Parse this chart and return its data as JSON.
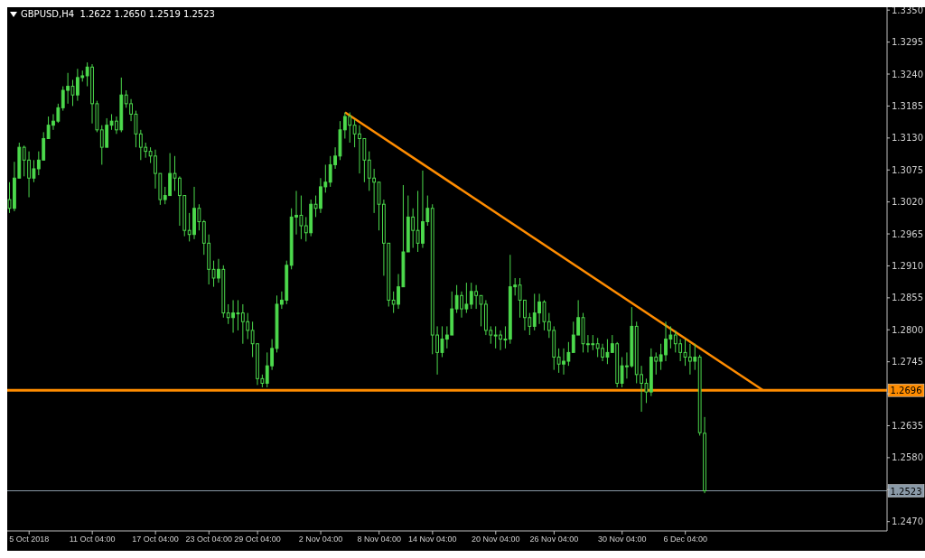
{
  "chart_data": {
    "type": "candlestick",
    "title": "GBPUSD,H4  1.2622 1.2650 1.2519 1.2523",
    "color": "#4cd94c",
    "categories": [
      null,
      null,
      null,
      null,
      "5 Oct 2018",
      null,
      null,
      null,
      null,
      null,
      null,
      null,
      null,
      null,
      null,
      null,
      null,
      "11 Oct 04:00",
      null,
      null,
      null,
      null,
      null,
      null,
      null,
      null,
      null,
      null,
      null,
      null,
      "17 Oct 04:00",
      null,
      null,
      null,
      null,
      null,
      null,
      null,
      null,
      null,
      null,
      "23 Oct 04:00",
      null,
      null,
      null,
      null,
      null,
      null,
      null,
      null,
      null,
      "29 Oct 04:00",
      null,
      null,
      null,
      null,
      null,
      null,
      null,
      null,
      null,
      null,
      null,
      null,
      "2 Nov 04:00",
      null,
      null,
      null,
      null,
      null,
      null,
      null,
      null,
      null,
      null,
      null,
      "8 Nov 04:00",
      null,
      null,
      null,
      null,
      null,
      null,
      null,
      null,
      null,
      null,
      "14 Nov 04:00",
      null,
      null,
      null,
      null,
      null,
      null,
      null,
      null,
      null,
      null,
      null,
      null,
      "20 Nov 04:00",
      null,
      null,
      null,
      null,
      null,
      null,
      null,
      null,
      null,
      null,
      null,
      "26 Nov 04:00",
      null,
      null,
      null,
      null,
      null,
      null,
      null,
      null,
      null,
      null,
      null,
      null,
      null,
      "30 Nov 04:00",
      null,
      null,
      null,
      null,
      null,
      null,
      null,
      null,
      null,
      null,
      null,
      null,
      "6 Dec 04:00",
      null,
      null,
      null,
      null,
      null,
      null,
      null,
      null,
      null,
      null,
      null,
      null,
      null,
      null,
      null,
      null,
      null,
      null,
      null,
      null,
      null,
      null,
      null,
      null,
      null,
      null,
      null,
      null,
      null,
      null,
      null,
      null,
      null,
      null,
      null,
      null,
      null,
      null,
      null,
      null,
      null
    ],
    "ohlc": [
      [
        1.3024,
        1.3054,
        1.3001,
        1.3009
      ],
      [
        1.3009,
        1.3089,
        1.3004,
        1.3061
      ],
      [
        1.3061,
        1.3122,
        1.3061,
        1.3114
      ],
      [
        1.3114,
        1.3117,
        1.3064,
        1.3092
      ],
      [
        1.3092,
        1.3107,
        1.3028,
        1.3061
      ],
      [
        1.3061,
        1.3092,
        1.3054,
        1.3077
      ],
      [
        1.3077,
        1.3107,
        1.3066,
        1.3092
      ],
      [
        1.3092,
        1.314,
        1.3092,
        1.3129
      ],
      [
        1.3129,
        1.3167,
        1.3129,
        1.3152
      ],
      [
        1.3152,
        1.3171,
        1.3144,
        1.3159
      ],
      [
        1.3159,
        1.3189,
        1.3156,
        1.3182
      ],
      [
        1.3182,
        1.3219,
        1.3177,
        1.3212
      ],
      [
        1.3212,
        1.3242,
        1.3189,
        1.3219
      ],
      [
        1.3219,
        1.323,
        1.3185,
        1.3204
      ],
      [
        1.3204,
        1.3249,
        1.3194,
        1.3234
      ],
      [
        1.3234,
        1.3246,
        1.3227,
        1.3237
      ],
      [
        1.3237,
        1.326,
        1.3219,
        1.3252
      ],
      [
        1.3252,
        1.3257,
        1.3155,
        1.3189
      ],
      [
        1.3189,
        1.3194,
        1.314,
        1.3144
      ],
      [
        1.3144,
        1.3152,
        1.3084,
        1.3114
      ],
      [
        1.3114,
        1.3164,
        1.3114,
        1.3152
      ],
      [
        1.3152,
        1.3171,
        1.3144,
        1.3159
      ],
      [
        1.3159,
        1.3167,
        1.3137,
        1.3144
      ],
      [
        1.3144,
        1.3234,
        1.314,
        1.3204
      ],
      [
        1.3204,
        1.3212,
        1.3182,
        1.3189
      ],
      [
        1.3189,
        1.3197,
        1.3159,
        1.3171
      ],
      [
        1.3171,
        1.3177,
        1.3114,
        1.3137
      ],
      [
        1.3137,
        1.3144,
        1.3092,
        1.3114
      ],
      [
        1.3114,
        1.3122,
        1.3096,
        1.3107
      ],
      [
        1.3107,
        1.3114,
        1.3087,
        1.3099
      ],
      [
        1.3099,
        1.311,
        1.3043,
        1.3069
      ],
      [
        1.3069,
        1.3069,
        1.3015,
        1.3024
      ],
      [
        1.3024,
        1.3046,
        1.3016,
        1.3031
      ],
      [
        1.3031,
        1.3104,
        1.3031,
        1.3069
      ],
      [
        1.3069,
        1.3099,
        1.3039,
        1.3061
      ],
      [
        1.3061,
        1.3064,
        1.2979,
        1.3031
      ],
      [
        1.3031,
        1.3031,
        1.2961,
        1.2971
      ],
      [
        1.2971,
        1.3001,
        1.2952,
        1.2964
      ],
      [
        1.2964,
        1.3046,
        1.2956,
        1.3009
      ],
      [
        1.3009,
        1.3016,
        1.2971,
        1.2986
      ],
      [
        1.2986,
        1.2989,
        1.2929,
        1.2949
      ],
      [
        1.2949,
        1.2964,
        1.2878,
        1.2904
      ],
      [
        1.2904,
        1.2919,
        1.2874,
        1.2889
      ],
      [
        1.2889,
        1.2922,
        1.2881,
        1.2904
      ],
      [
        1.2904,
        1.2911,
        1.2821,
        1.2829
      ],
      [
        1.2829,
        1.2844,
        1.281,
        1.2821
      ],
      [
        1.2821,
        1.2851,
        1.2795,
        1.2829
      ],
      [
        1.2829,
        1.2851,
        1.2799,
        1.2829
      ],
      [
        1.2829,
        1.2844,
        1.2776,
        1.2814
      ],
      [
        1.2814,
        1.2829,
        1.2784,
        1.2799
      ],
      [
        1.2799,
        1.2814,
        1.2753,
        1.2776
      ],
      [
        1.2776,
        1.2776,
        1.2705,
        1.2716
      ],
      [
        1.2716,
        1.2723,
        1.2701,
        1.2708
      ],
      [
        1.2708,
        1.2761,
        1.2701,
        1.2738
      ],
      [
        1.2738,
        1.2784,
        1.2731,
        1.2768
      ],
      [
        1.2768,
        1.2859,
        1.2761,
        1.2844
      ],
      [
        1.2844,
        1.2866,
        1.2836,
        1.2851
      ],
      [
        1.2851,
        1.2919,
        1.2844,
        1.2911
      ],
      [
        1.2911,
        1.3009,
        1.2904,
        1.2994
      ],
      [
        1.2994,
        1.3039,
        1.2964,
        1.2997
      ],
      [
        1.2997,
        1.3031,
        1.2956,
        1.2979
      ],
      [
        1.2979,
        1.2994,
        1.2952,
        1.2967
      ],
      [
        1.2967,
        1.3024,
        1.2961,
        1.3016
      ],
      [
        1.3016,
        1.3031,
        1.2994,
        1.3009
      ],
      [
        1.3009,
        1.3061,
        1.3001,
        1.3046
      ],
      [
        1.3046,
        1.3084,
        1.3036,
        1.3054
      ],
      [
        1.3054,
        1.3099,
        1.3046,
        1.3084
      ],
      [
        1.3084,
        1.3114,
        1.3077,
        1.3099
      ],
      [
        1.3099,
        1.3159,
        1.3092,
        1.3144
      ],
      [
        1.3144,
        1.3174,
        1.3129,
        1.3167
      ],
      [
        1.3167,
        1.3174,
        1.3122,
        1.3152
      ],
      [
        1.3152,
        1.3162,
        1.3114,
        1.3137
      ],
      [
        1.3137,
        1.3152,
        1.3069,
        1.3129
      ],
      [
        1.3129,
        1.3129,
        1.3054,
        1.3092
      ],
      [
        1.3092,
        1.3107,
        1.3039,
        1.3061
      ],
      [
        1.3061,
        1.3077,
        1.3001,
        1.3054
      ],
      [
        1.3054,
        1.3054,
        1.2971,
        1.3016
      ],
      [
        1.3016,
        1.3024,
        1.2893,
        1.2949
      ],
      [
        1.2949,
        1.2949,
        1.284,
        1.2851
      ],
      [
        1.2851,
        1.2866,
        1.2829,
        1.2844
      ],
      [
        1.2844,
        1.2896,
        1.2836,
        1.2874
      ],
      [
        1.2874,
        1.3049,
        1.2874,
        1.2934
      ],
      [
        1.2934,
        1.3031,
        1.2934,
        1.2994
      ],
      [
        1.2994,
        1.3009,
        1.2941,
        1.2971
      ],
      [
        1.2971,
        1.3039,
        1.2934,
        1.2949
      ],
      [
        1.2949,
        1.3074,
        1.2941,
        1.2986
      ],
      [
        1.2986,
        1.3031,
        1.2979,
        1.3009
      ],
      [
        1.3009,
        1.3016,
        1.2758,
        1.2791
      ],
      [
        1.2791,
        1.2806,
        1.2723,
        1.2761
      ],
      [
        1.2761,
        1.2806,
        1.2753,
        1.2784
      ],
      [
        1.2784,
        1.2806,
        1.2768,
        1.2791
      ],
      [
        1.2791,
        1.2866,
        1.2791,
        1.2836
      ],
      [
        1.2836,
        1.2877,
        1.2829,
        1.2859
      ],
      [
        1.2859,
        1.2866,
        1.2821,
        1.2836
      ],
      [
        1.2836,
        1.2881,
        1.2829,
        1.2844
      ],
      [
        1.2844,
        1.2881,
        1.2836,
        1.2866
      ],
      [
        1.2866,
        1.2877,
        1.2836,
        1.2859
      ],
      [
        1.2859,
        1.2859,
        1.2806,
        1.2844
      ],
      [
        1.2844,
        1.2851,
        1.2791,
        1.2799
      ],
      [
        1.2799,
        1.2806,
        1.2776,
        1.2791
      ],
      [
        1.2791,
        1.2806,
        1.2768,
        1.2791
      ],
      [
        1.2791,
        1.2799,
        1.2765,
        1.2784
      ],
      [
        1.2784,
        1.2806,
        1.2768,
        1.2784
      ],
      [
        1.2784,
        1.2929,
        1.2776,
        1.2874
      ],
      [
        1.2874,
        1.2889,
        1.2859,
        1.2877
      ],
      [
        1.2877,
        1.2889,
        1.2821,
        1.2851
      ],
      [
        1.2851,
        1.2851,
        1.2799,
        1.2821
      ],
      [
        1.2821,
        1.2829,
        1.2791,
        1.2806
      ],
      [
        1.2806,
        1.2862,
        1.2799,
        1.2829
      ],
      [
        1.2829,
        1.2862,
        1.281,
        1.2848
      ],
      [
        1.2848,
        1.2851,
        1.2799,
        1.2814
      ],
      [
        1.2814,
        1.2829,
        1.2786,
        1.2799
      ],
      [
        1.2799,
        1.2806,
        1.2731,
        1.2753
      ],
      [
        1.2753,
        1.2768,
        1.2726,
        1.2741
      ],
      [
        1.2741,
        1.2768,
        1.2723,
        1.2746
      ],
      [
        1.2746,
        1.2779,
        1.2738,
        1.2761
      ],
      [
        1.2761,
        1.2814,
        1.2761,
        1.2791
      ],
      [
        1.2791,
        1.2851,
        1.2791,
        1.2821
      ],
      [
        1.2821,
        1.2829,
        1.2761,
        1.2776
      ],
      [
        1.2776,
        1.2791,
        1.2761,
        1.2776
      ],
      [
        1.2776,
        1.2791,
        1.2765,
        1.2776
      ],
      [
        1.2776,
        1.2786,
        1.2753,
        1.2768
      ],
      [
        1.2768,
        1.2776,
        1.2746,
        1.2753
      ],
      [
        1.2753,
        1.2784,
        1.2741,
        1.2761
      ],
      [
        1.2761,
        1.2791,
        1.2761,
        1.2776
      ],
      [
        1.2776,
        1.2779,
        1.2701,
        1.2708
      ],
      [
        1.2708,
        1.2753,
        1.2701,
        1.2738
      ],
      [
        1.2738,
        1.2761,
        1.2716,
        1.2738
      ],
      [
        1.2738,
        1.2839,
        1.2735,
        1.2806
      ],
      [
        1.2806,
        1.2814,
        1.2708,
        1.2723
      ],
      [
        1.2723,
        1.2738,
        1.2659,
        1.2708
      ],
      [
        1.2708,
        1.2716,
        1.2674,
        1.2693
      ],
      [
        1.2693,
        1.2768,
        1.2686,
        1.2753
      ],
      [
        1.2753,
        1.2761,
        1.2723,
        1.2746
      ],
      [
        1.2746,
        1.2776,
        1.2731,
        1.2757
      ],
      [
        1.2757,
        1.2814,
        1.2746,
        1.2784
      ],
      [
        1.2784,
        1.2806,
        1.2768,
        1.2791
      ],
      [
        1.2791,
        1.2799,
        1.2761,
        1.2776
      ],
      [
        1.2776,
        1.2784,
        1.2746,
        1.2761
      ],
      [
        1.2761,
        1.2784,
        1.2738,
        1.2753
      ],
      [
        1.2753,
        1.2776,
        1.2723,
        1.2746
      ],
      [
        1.2746,
        1.2776,
        1.2731,
        1.2753
      ],
      [
        1.2753,
        1.2757,
        1.2618,
        1.2623
      ],
      [
        1.2622,
        1.265,
        1.2519,
        1.2523
      ],
      null,
      null,
      null,
      null,
      null,
      null,
      null,
      null,
      null,
      null,
      null,
      null,
      null,
      null,
      null,
      null,
      null,
      null,
      null,
      null,
      null,
      null,
      null,
      null,
      null,
      null,
      null,
      null,
      null,
      null,
      null,
      null,
      null,
      null,
      null,
      null,
      null
    ],
    "series": [
      {
        "type": "line",
        "color": "#ff8c00",
        "values": [
          null,
          null,
          null,
          null,
          null,
          null,
          null,
          null,
          null,
          null,
          null,
          null,
          null,
          null,
          null,
          null,
          null,
          null,
          null,
          null,
          null,
          null,
          null,
          null,
          null,
          null,
          null,
          null,
          null,
          null,
          null,
          null,
          null,
          null,
          null,
          null,
          null,
          null,
          null,
          null,
          null,
          null,
          null,
          null,
          null,
          null,
          null,
          null,
          null,
          null,
          null,
          null,
          null,
          null,
          null,
          null,
          null,
          null,
          null,
          null,
          null,
          null,
          null,
          null,
          null,
          null,
          null,
          null,
          null,
          1.3174,
          null,
          null,
          null,
          null,
          null,
          null,
          null,
          null,
          null,
          null,
          null,
          null,
          null,
          null,
          null,
          null,
          null,
          null,
          null,
          null,
          null,
          null,
          null,
          null,
          null,
          null,
          null,
          null,
          null,
          null,
          null,
          null,
          null,
          null,
          null,
          null,
          null,
          null,
          null,
          null,
          null,
          null,
          null,
          null,
          null,
          null,
          null,
          null,
          null,
          null,
          null,
          null,
          null,
          null,
          null,
          null,
          null,
          null,
          null,
          null,
          null,
          null,
          null,
          null,
          null,
          null,
          null,
          null,
          null,
          null,
          null,
          null,
          null,
          null,
          null,
          null,
          null,
          null,
          null,
          null,
          null,
          null,
          null,
          null,
          null,
          1.2696,
          null,
          null,
          null,
          null,
          null,
          null,
          null,
          null,
          null,
          null,
          null,
          null,
          null,
          null,
          null,
          null,
          null,
          null,
          null,
          null,
          null,
          null,
          null,
          null,
          null
        ]
      }
    ],
    "ylim": [
      1.2454,
      1.3355
    ],
    "yticks": [
      {
        "value": 1.247,
        "label": "1.2470"
      },
      {
        "value": 1.2525,
        "label": null
      },
      {
        "value": 1.258,
        "label": "1.2580"
      },
      {
        "value": 1.2635,
        "label": "1.2635"
      },
      {
        "value": 1.269,
        "label": null
      },
      {
        "value": 1.2745,
        "label": "1.2745"
      },
      {
        "value": 1.28,
        "label": "1.2800"
      },
      {
        "value": 1.2855,
        "label": "1.2855"
      },
      {
        "value": 1.291,
        "label": "1.2910"
      },
      {
        "value": 1.2965,
        "label": "1.2965"
      },
      {
        "value": 1.302,
        "label": "1.3020"
      },
      {
        "value": 1.3075,
        "label": "1.3075"
      },
      {
        "value": 1.313,
        "label": "1.3130"
      },
      {
        "value": 1.3185,
        "label": "1.3185"
      },
      {
        "value": 1.324,
        "label": "1.3240"
      },
      {
        "value": 1.3295,
        "label": "1.3295"
      },
      {
        "value": 1.335,
        "label": "1.3350"
      }
    ],
    "ref_lines": [
      {
        "axis": "y",
        "value": 1.2696,
        "label": "1.2696",
        "color": "#ff8c00"
      },
      {
        "axis": "y",
        "value": 1.2523,
        "label": "1.2523",
        "color": "#8a9aa8"
      }
    ]
  }
}
